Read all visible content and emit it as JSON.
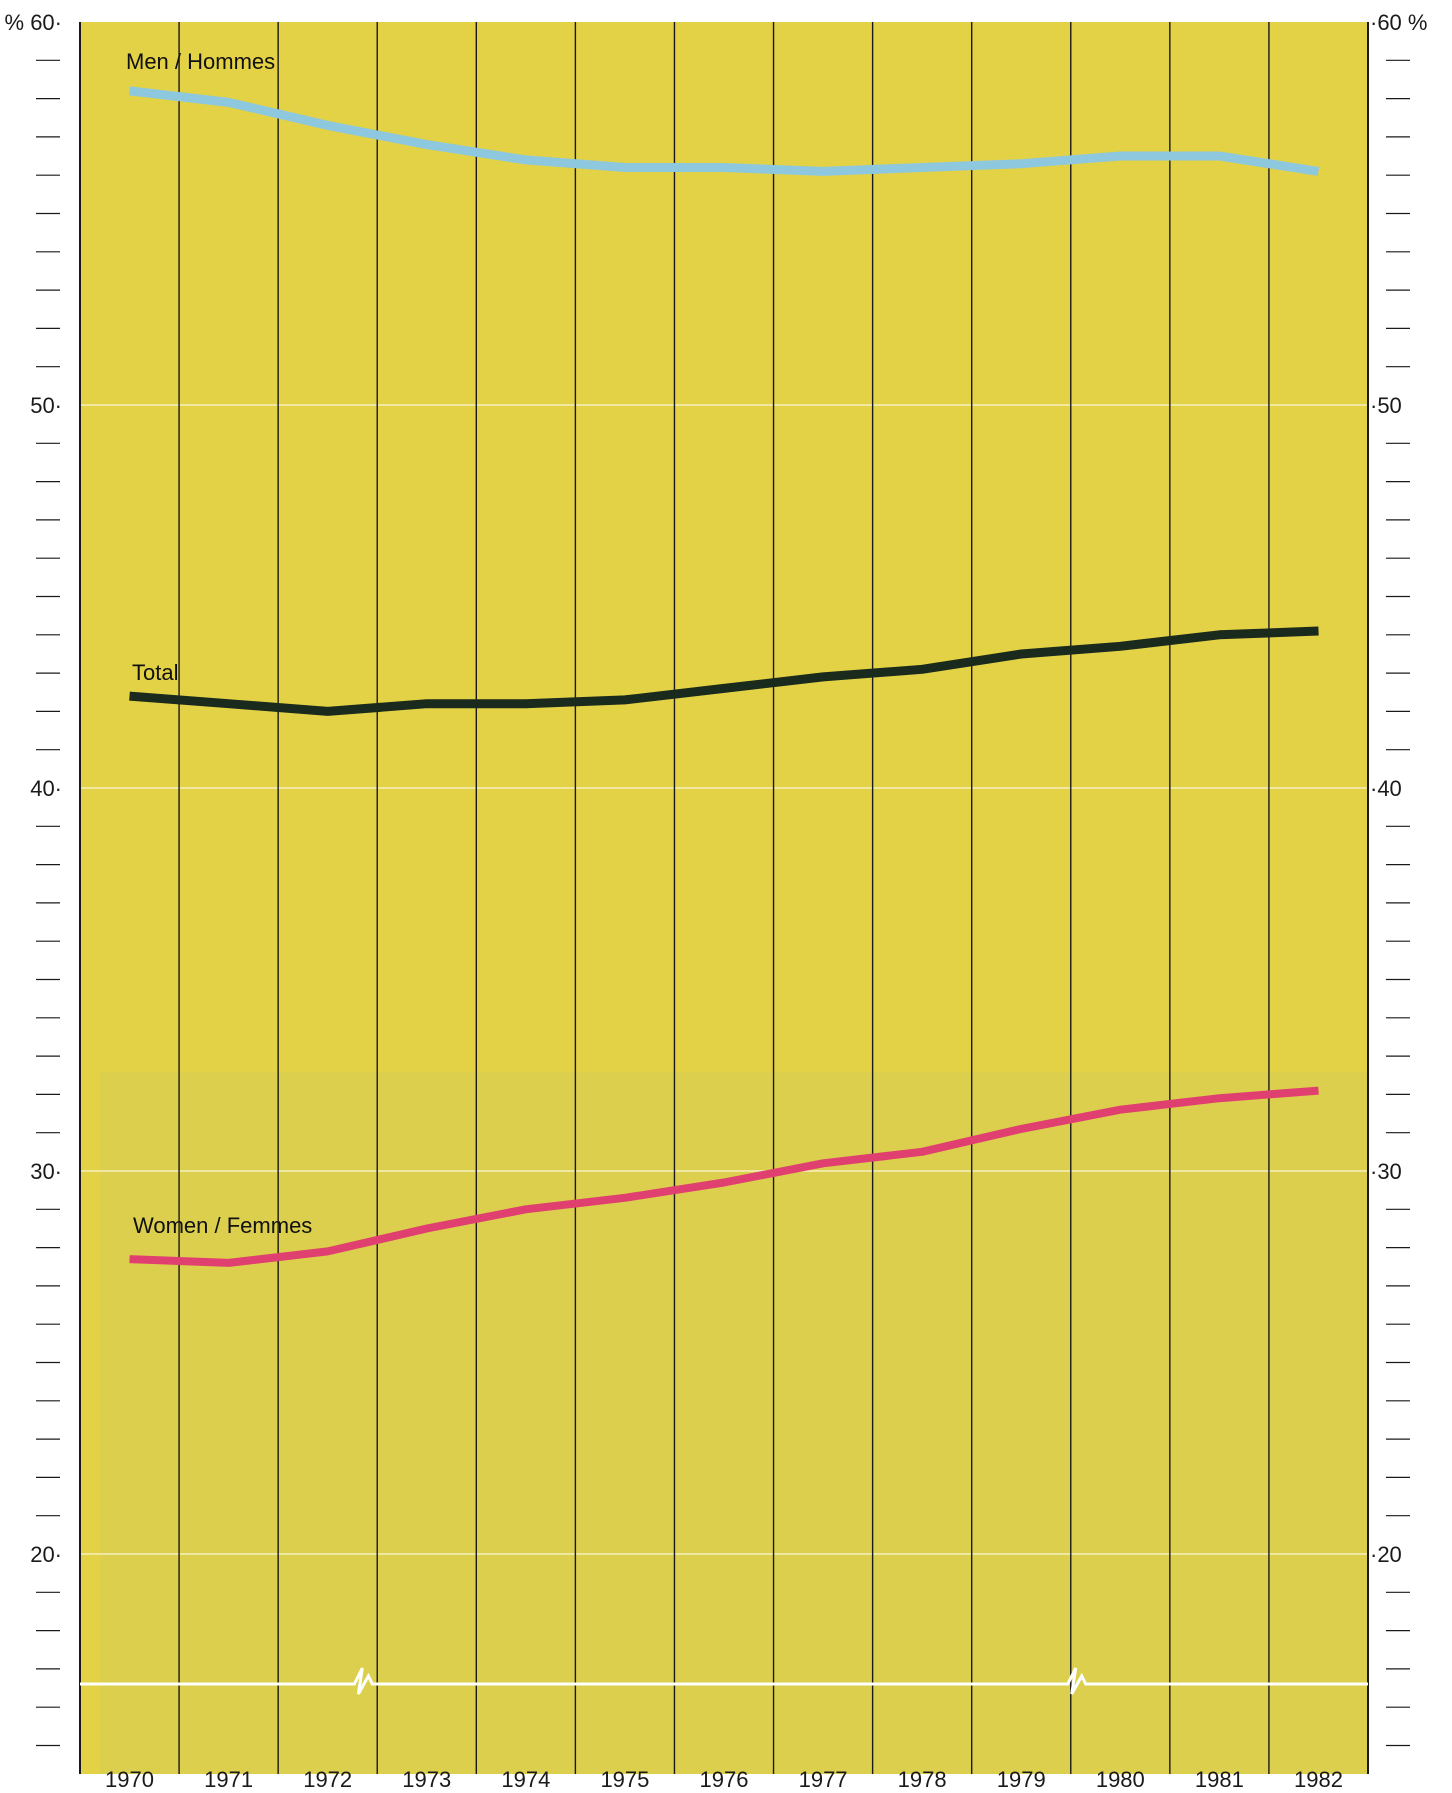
{
  "chart_data": {
    "type": "line",
    "title": "",
    "xlabel": "",
    "ylabel": "",
    "y_unit_left": "%",
    "y_unit_right": "%",
    "categories": [
      "1970",
      "1971",
      "1972",
      "1973",
      "1974",
      "1975",
      "1976",
      "1977",
      "1978",
      "1979",
      "1980",
      "1981",
      "1982"
    ],
    "ylim": [
      15,
      60
    ],
    "yticks": [
      20,
      30,
      40,
      50,
      60
    ],
    "y_minor_step": 1,
    "grid": true,
    "axis_break": true,
    "series": [
      {
        "name": "Men / Hommes",
        "color": "#8ec8df",
        "values": [
          58.2,
          57.9,
          57.3,
          56.8,
          56.4,
          56.2,
          56.2,
          56.1,
          56.2,
          56.3,
          56.5,
          56.5,
          56.1
        ]
      },
      {
        "name": "Total",
        "color": "#1a2a1c",
        "values": [
          42.4,
          42.2,
          42.0,
          42.2,
          42.2,
          42.3,
          42.6,
          42.9,
          43.1,
          43.5,
          43.7,
          44.0,
          44.1
        ]
      },
      {
        "name": "Women / Femmes",
        "color": "#e04070",
        "values": [
          27.7,
          27.6,
          27.9,
          28.5,
          29.0,
          29.3,
          29.7,
          30.2,
          30.5,
          31.1,
          31.6,
          31.9,
          32.1
        ]
      }
    ],
    "colors": {
      "background": "#e3d245",
      "lower_band": "#d7cd55",
      "axis": "#1a1a1a",
      "gridline": "#f5f0c0"
    }
  }
}
